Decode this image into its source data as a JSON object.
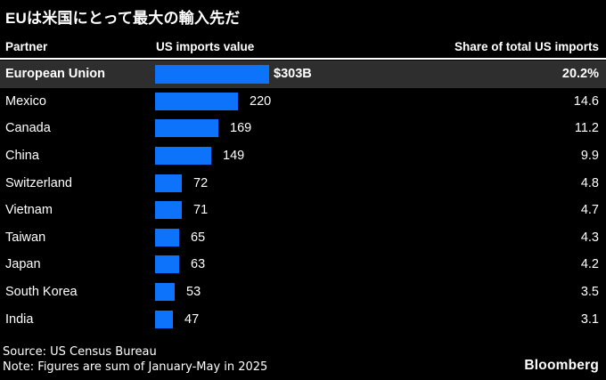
{
  "chart_data": {
    "type": "bar",
    "orientation": "horizontal",
    "title": "EUは米国にとって最大の輸入先だ",
    "columns": [
      "Partner",
      "US imports value",
      "Share of total US imports"
    ],
    "categories": [
      "European Union",
      "Mexico",
      "Canada",
      "China",
      "Switzerland",
      "Vietnam",
      "Taiwan",
      "Japan",
      "South Korea",
      "India"
    ],
    "values": [
      303,
      220,
      169,
      149,
      72,
      71,
      65,
      63,
      53,
      47
    ],
    "value_unit": "billions of US dollars",
    "shares_of_total_us_imports_pct": [
      20.2,
      14.6,
      11.2,
      9.9,
      4.8,
      4.7,
      4.3,
      4.2,
      3.5,
      3.1
    ],
    "highlighted_row": "European Union",
    "bar_color": "#0d73fa",
    "highlight_row_bg": "#2e2e2e",
    "background_color": "#000000",
    "legend": "none",
    "grid": "off",
    "rows": [
      {
        "partner": "European Union",
        "value": 303,
        "value_label": "$303B",
        "share": "20.2%",
        "highlight": true
      },
      {
        "partner": "Mexico",
        "value": 220,
        "value_label": "220",
        "share": "14.6",
        "highlight": false
      },
      {
        "partner": "Canada",
        "value": 169,
        "value_label": "169",
        "share": "11.2",
        "highlight": false
      },
      {
        "partner": "China",
        "value": 149,
        "value_label": "149",
        "share": "9.9",
        "highlight": false
      },
      {
        "partner": "Switzerland",
        "value": 72,
        "value_label": "72",
        "share": "4.8",
        "highlight": false
      },
      {
        "partner": "Vietnam",
        "value": 71,
        "value_label": "71",
        "share": "4.7",
        "highlight": false
      },
      {
        "partner": "Taiwan",
        "value": 65,
        "value_label": "65",
        "share": "4.3",
        "highlight": false
      },
      {
        "partner": "Japan",
        "value": 63,
        "value_label": "63",
        "share": "4.2",
        "highlight": false
      },
      {
        "partner": "South Korea",
        "value": 53,
        "value_label": "53",
        "share": "3.5",
        "highlight": false
      },
      {
        "partner": "India",
        "value": 47,
        "value_label": "47",
        "share": "3.1",
        "highlight": false
      }
    ]
  },
  "footer": {
    "source": "Source: US Census Bureau",
    "note": "Note: Figures are sum of January-May in 2025",
    "logo": "Bloomberg"
  }
}
